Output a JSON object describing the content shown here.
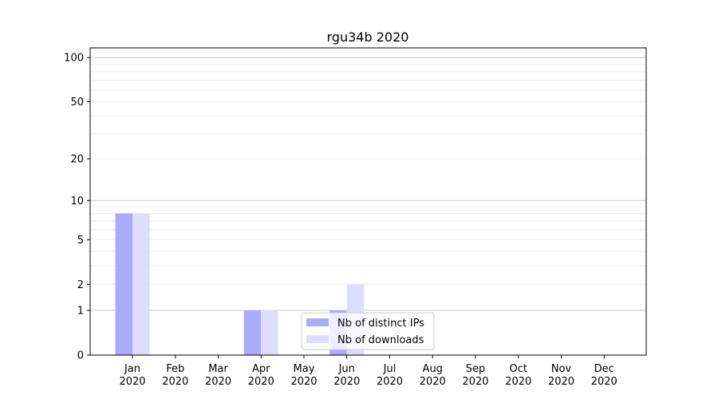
{
  "chart_data": {
    "type": "bar",
    "title": "rgu34b 2020",
    "categories": [
      "Jan\n2020",
      "Feb\n2020",
      "Mar\n2020",
      "Apr\n2020",
      "May\n2020",
      "Jun\n2020",
      "Jul\n2020",
      "Aug\n2020",
      "Sep\n2020",
      "Oct\n2020",
      "Nov\n2020",
      "Dec\n2020"
    ],
    "series": [
      {
        "name": "Nb of distinct IPs",
        "color": "#aaaaff",
        "values": [
          8,
          0,
          0,
          1,
          0,
          1,
          0,
          0,
          0,
          0,
          0,
          0
        ]
      },
      {
        "name": "Nb of downloads",
        "color": "#ddddff",
        "values": [
          8,
          0,
          0,
          1,
          0,
          2,
          0,
          0,
          0,
          0,
          0,
          0
        ]
      }
    ],
    "yscale": "log(1+y)",
    "yticks": [
      0,
      1,
      2,
      5,
      10,
      20,
      50,
      100
    ],
    "ylim": [
      0,
      116
    ],
    "grid": true,
    "legend": "bottom-center",
    "xlabel": "",
    "ylabel": ""
  }
}
